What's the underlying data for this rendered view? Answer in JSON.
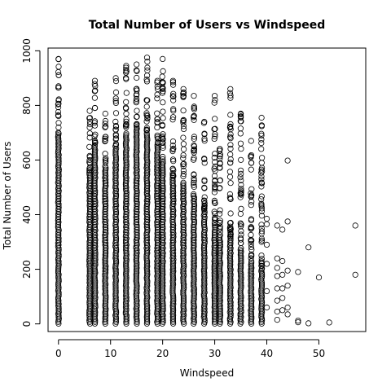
{
  "chart_data": {
    "type": "scatter",
    "title": "Total Number of Users vs Windspeed",
    "xlabel": "Windspeed",
    "ylabel": "Total Number of Users",
    "xlim": [
      -2,
      59
    ],
    "ylim": [
      -28,
      1010
    ],
    "xticks": [
      0,
      10,
      20,
      30,
      40,
      50
    ],
    "yticks": [
      0,
      200,
      400,
      600,
      800,
      1000
    ],
    "grid": false,
    "legend": "none",
    "marker": "open-circle",
    "point_color": "#000000",
    "series": [
      {
        "columns": [
          {
            "x": 0,
            "max": 970,
            "dense_to": 700
          },
          {
            "x": 6,
            "max": 780,
            "dense_to": 560
          },
          {
            "x": 7,
            "max": 890,
            "dense_to": 660
          },
          {
            "x": 9,
            "max": 770,
            "dense_to": 580
          },
          {
            "x": 11,
            "max": 900,
            "dense_to": 640
          },
          {
            "x": 13,
            "max": 945,
            "dense_to": 700
          },
          {
            "x": 15,
            "max": 950,
            "dense_to": 730
          },
          {
            "x": 17,
            "max": 975,
            "dense_to": 700
          },
          {
            "x": 19,
            "max": 890,
            "dense_to": 660
          },
          {
            "x": 20,
            "max": 970,
            "dense_to": 600
          },
          {
            "x": 22,
            "max": 890,
            "dense_to": 540
          },
          {
            "x": 24,
            "max": 860,
            "dense_to": 520
          },
          {
            "x": 26,
            "max": 835,
            "dense_to": 480
          },
          {
            "x": 28,
            "max": 740,
            "dense_to": 420
          },
          {
            "x": 30,
            "max": 835,
            "dense_to": 360
          },
          {
            "x": 31,
            "max": 640,
            "dense_to": 330
          },
          {
            "x": 33,
            "max": 860,
            "dense_to": 320
          },
          {
            "x": 35,
            "max": 770,
            "dense_to": 280
          },
          {
            "x": 37,
            "max": 670,
            "dense_to": 230
          },
          {
            "x": 39,
            "max": 755,
            "dense_to": 200
          }
        ],
        "points": [
          [
            39,
            565
          ],
          [
            40,
            385
          ],
          [
            40,
            365
          ],
          [
            40,
            290
          ],
          [
            40,
            220
          ],
          [
            40,
            120
          ],
          [
            40,
            60
          ],
          [
            42,
            360
          ],
          [
            42,
            240
          ],
          [
            42,
            205
          ],
          [
            42,
            175
          ],
          [
            42,
            130
          ],
          [
            42,
            85
          ],
          [
            42,
            45
          ],
          [
            42,
            15
          ],
          [
            43,
            345
          ],
          [
            43,
            230
          ],
          [
            43,
            180
          ],
          [
            43,
            130
          ],
          [
            43,
            95
          ],
          [
            43,
            50
          ],
          [
            44,
            598
          ],
          [
            44,
            375
          ],
          [
            44,
            195
          ],
          [
            44,
            140
          ],
          [
            44,
            60
          ],
          [
            44,
            35
          ],
          [
            46,
            190
          ],
          [
            46,
            12
          ],
          [
            46,
            6
          ],
          [
            48,
            280
          ],
          [
            48,
            2
          ],
          [
            50,
            170
          ],
          [
            52,
            5
          ],
          [
            57,
            360
          ],
          [
            57,
            180
          ]
        ]
      }
    ]
  }
}
